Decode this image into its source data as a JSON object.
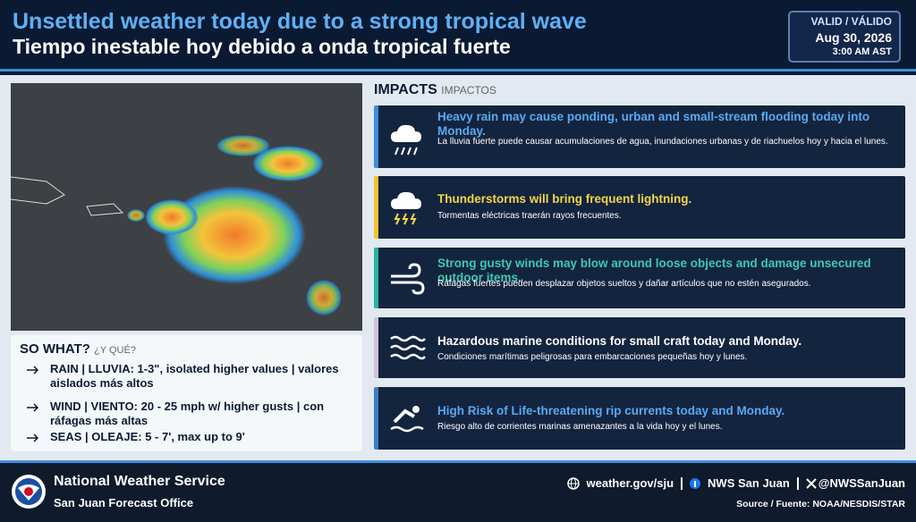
{
  "header": {
    "title_en": "Unsettled weather today due to a strong tropical wave",
    "title_es": "Tiempo inestable hoy debido a onda tropical fuerte",
    "valid": {
      "label": "VALID / VÁLIDO",
      "date": "Aug 30, 2026",
      "time": "3:00 AM AST"
    }
  },
  "so_what": {
    "title": "SO WHAT?",
    "subtitle": "¿Y QUÉ?",
    "items": [
      "RAIN | LLUVIA: 1-3\", isolated higher values | valores aislados más altos",
      "WIND | VIENTO: 20 - 25 mph w/ higher gusts | con ráfagas más altas",
      "SEAS | OLEAJE: 5 - 7', max up to 9'"
    ]
  },
  "impacts": {
    "title": "IMPACTS",
    "subtitle": "IMPACTOS",
    "items": [
      {
        "headline": "Heavy rain may cause ponding, urban and small-stream flooding today into Monday.",
        "detail": "La lluvia fuerte puede causar acumulaciones de agua, inundaciones urbanas y de riachuelos hoy y hacia el lunes."
      },
      {
        "headline": "Thunderstorms will bring frequent lightning.",
        "detail": "Tormentas eléctricas traerán rayos frecuentes."
      },
      {
        "headline": "Strong gusty winds may blow around loose objects and damage unsecured outdoor items.",
        "detail": "Ráfagas fuertes pueden desplazar objetos sueltos y dañar artículos que no estén asegurados."
      },
      {
        "headline": "Hazardous marine conditions for small craft today and Monday.",
        "detail": "Condiciones marítimas peligrosas para embarcaciones pequeñas hoy y lunes."
      },
      {
        "headline": "High Risk of Life-threatening rip currents today and Monday.",
        "detail": "Riesgo alto de corrientes marinas amenazantes a la vida hoy y el lunes."
      }
    ]
  },
  "footer": {
    "org": "National Weather Service",
    "office": "San Juan Forecast Office",
    "website": "weather.gov/sju",
    "facebook": "NWS San Juan",
    "x": "@NWSSanJuan",
    "source": "Source / Fuente: NOAA/NESDIS/STAR"
  }
}
